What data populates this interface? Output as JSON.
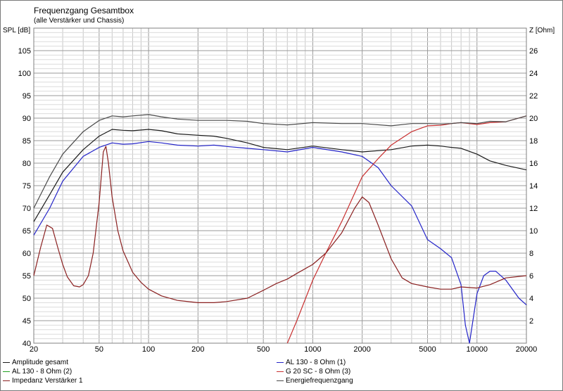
{
  "chart_data": {
    "type": "line",
    "title": "Frequenzgang Gesamtbox",
    "subtitle": "(alle Verstärker und Chassis)",
    "ylabel_left": "SPL [dB]",
    "ylabel_right": "Z [Ohm]",
    "x_scale": "log",
    "xlim": [
      20,
      20000
    ],
    "ylim_left": [
      40,
      110
    ],
    "ylim_right": [
      0,
      28
    ],
    "x_ticks": [
      "20",
      "50",
      "100",
      "200",
      "500",
      "1000",
      "2000",
      "5000",
      "10000",
      "20000"
    ],
    "y_ticks_left": [
      "40",
      "45",
      "50",
      "55",
      "60",
      "65",
      "70",
      "75",
      "80",
      "85",
      "90",
      "95",
      "100",
      "105"
    ],
    "y_ticks_right": [
      "2",
      "4",
      "6",
      "8",
      "10",
      "12",
      "14",
      "16",
      "18",
      "20",
      "22",
      "24",
      "26"
    ],
    "grid": true,
    "legend_placement": "bottom",
    "series": [
      {
        "name": "Amplitude gesamt",
        "axis": "left",
        "color": "#1a1a1a",
        "x": [
          20,
          25,
          30,
          40,
          50,
          60,
          70,
          80,
          100,
          120,
          150,
          200,
          250,
          300,
          400,
          500,
          700,
          1000,
          1500,
          2000,
          3000,
          4000,
          5000,
          6000,
          7000,
          8000,
          10000,
          12000,
          15000,
          20000
        ],
        "y": [
          67,
          73,
          78,
          83,
          86,
          87.5,
          87.3,
          87.2,
          87.5,
          87.2,
          86.5,
          86.2,
          86,
          85.5,
          84.5,
          83.5,
          83,
          83.8,
          83,
          82.5,
          83,
          83.8,
          84,
          83.8,
          83.5,
          83.3,
          82,
          80.5,
          79.5,
          78.5
        ]
      },
      {
        "name": "AL 130 - 8 Ohm (1)",
        "axis": "left",
        "color": "#2424c8",
        "x": [
          20,
          25,
          30,
          40,
          50,
          60,
          70,
          80,
          100,
          120,
          150,
          200,
          250,
          300,
          400,
          500,
          700,
          1000,
          1500,
          2000,
          2500,
          3000,
          4000,
          5000,
          6000,
          7000,
          8000,
          8500,
          9000,
          10000,
          11000,
          12000,
          13000,
          15000,
          18000,
          20000
        ],
        "y": [
          64,
          70,
          76,
          81.5,
          83.5,
          84.5,
          84.2,
          84.3,
          84.8,
          84.5,
          84,
          83.8,
          84,
          83.7,
          83.3,
          83,
          82.5,
          83.5,
          82.5,
          81.5,
          79,
          75,
          70.5,
          63,
          61,
          59,
          53,
          44,
          40,
          51,
          55,
          56,
          56,
          54,
          50,
          48.5
        ]
      },
      {
        "name": "AL 130 - 8 Ohm (2)",
        "axis": "left",
        "color": "#20a020",
        "x": [],
        "y": []
      },
      {
        "name": "G 20 SC - 8 Ohm (3)",
        "axis": "left",
        "color": "#c83030",
        "x": [
          700,
          800,
          1000,
          1200,
          1500,
          2000,
          2500,
          3000,
          4000,
          5000,
          6000,
          7000,
          8000,
          10000,
          12000,
          15000,
          20000
        ],
        "y": [
          40,
          45,
          54,
          60,
          67,
          77,
          81,
          84,
          87,
          88.3,
          88.4,
          88.8,
          89,
          88.6,
          89,
          89.2,
          90.5
        ]
      },
      {
        "name": "Impedanz Verstärker 1",
        "axis": "right",
        "color": "#8a2020",
        "x": [
          20,
          22,
          24,
          26,
          28,
          30,
          32,
          35,
          38,
          40,
          43,
          46,
          50,
          53,
          55,
          57,
          60,
          65,
          70,
          80,
          90,
          100,
          120,
          150,
          200,
          250,
          300,
          400,
          500,
          600,
          700,
          800,
          1000,
          1200,
          1500,
          1800,
          2000,
          2200,
          2500,
          3000,
          3500,
          4000,
          5000,
          6000,
          7000,
          8000,
          10000,
          12000,
          15000,
          20000
        ],
        "y": [
          6,
          8.5,
          10.5,
          10.2,
          8.5,
          7,
          5.9,
          5.1,
          5,
          5.2,
          6,
          8,
          12.5,
          17,
          17.5,
          16,
          13,
          10,
          8.2,
          6.3,
          5.4,
          4.8,
          4.2,
          3.8,
          3.6,
          3.6,
          3.7,
          4,
          4.7,
          5.3,
          5.7,
          6.2,
          7,
          8,
          9.8,
          12,
          13,
          12.5,
          10.5,
          7.5,
          5.8,
          5.3,
          5,
          4.8,
          4.8,
          5,
          4.9,
          5.2,
          5.8,
          6
        ]
      },
      {
        "name": "Energiefrequenzgang",
        "axis": "left",
        "color": "#4a4a4a",
        "x": [
          20,
          25,
          30,
          40,
          50,
          60,
          70,
          80,
          100,
          120,
          150,
          200,
          250,
          300,
          400,
          500,
          700,
          1000,
          1500,
          2000,
          3000,
          4000,
          5000,
          6000,
          7000,
          8000,
          10000,
          12000,
          15000,
          20000
        ],
        "y": [
          70,
          77,
          82,
          87,
          89.5,
          90.5,
          90.3,
          90.5,
          90.8,
          90.3,
          89.8,
          89.5,
          89.5,
          89.5,
          89.3,
          88.8,
          88.5,
          89,
          88.8,
          88.8,
          88.3,
          88.8,
          88.8,
          88.7,
          88.8,
          89,
          88.8,
          89.3,
          89.2,
          90.5
        ]
      }
    ]
  }
}
